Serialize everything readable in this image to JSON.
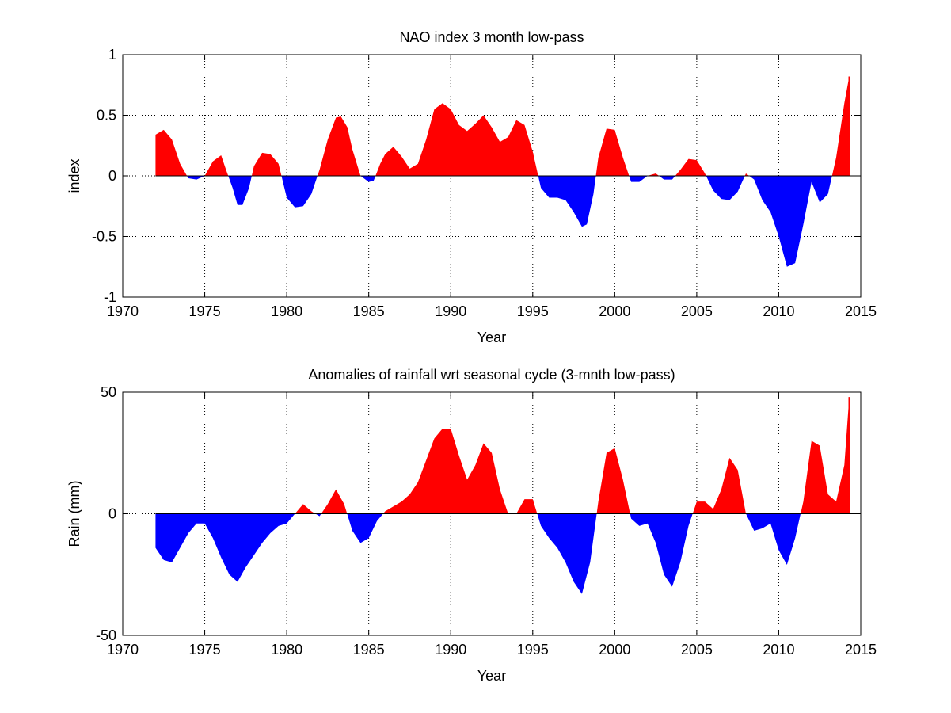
{
  "colors": {
    "positive": "#ff0000",
    "negative": "#0000ff",
    "axes": "#000000",
    "grid": "#000000"
  },
  "chart_data": [
    {
      "type": "area",
      "title": "NAO index 3 month low-pass",
      "xlabel": "Year",
      "ylabel": "index",
      "xlim": [
        1970,
        2015
      ],
      "ylim": [
        -1,
        1
      ],
      "xticks": [
        1970,
        1975,
        1980,
        1985,
        1990,
        1995,
        2000,
        2005,
        2010,
        2015
      ],
      "yticks": [
        -1,
        -0.5,
        0,
        0.5,
        1
      ],
      "xtick_labels": [
        "1970",
        "1975",
        "1980",
        "1985",
        "1990",
        "1995",
        "2000",
        "2005",
        "2010",
        "2015"
      ],
      "ytick_labels": [
        "-1",
        "-0.5",
        "0",
        "0.5",
        "1"
      ],
      "grid": true,
      "fill": "sign-colored",
      "series": [
        {
          "x": [
            1972.0,
            1972.5,
            1973.0,
            1973.5,
            1974.0,
            1974.5,
            1975.0,
            1975.5,
            1976.0,
            1976.3,
            1976.7,
            1977.0,
            1977.3,
            1977.7,
            1978.0,
            1978.5,
            1979.0,
            1979.5,
            1980.0,
            1980.5,
            1981.0,
            1981.5,
            1982.0,
            1982.5,
            1983.0,
            1983.3,
            1983.7,
            1984.0,
            1984.5,
            1985.0,
            1985.3,
            1985.7,
            1986.0,
            1986.5,
            1987.0,
            1987.5,
            1988.0,
            1988.5,
            1989.0,
            1989.5,
            1990.0,
            1990.5,
            1991.0,
            1991.5,
            1992.0,
            1992.5,
            1993.0,
            1993.5,
            1994.0,
            1994.5,
            1995.0,
            1995.5,
            1996.0,
            1996.5,
            1997.0,
            1997.5,
            1998.0,
            1998.3,
            1998.7,
            1999.0,
            1999.5,
            2000.0,
            2000.5,
            2001.0,
            2001.5,
            2002.0,
            2002.5,
            2003.0,
            2003.5,
            2004.0,
            2004.5,
            2005.0,
            2005.5,
            2006.0,
            2006.5,
            2007.0,
            2007.5,
            2008.0,
            2008.5,
            2009.0,
            2009.5,
            2010.0,
            2010.5,
            2011.0,
            2011.5,
            2012.0,
            2012.5,
            2013.0,
            2013.5,
            2014.0,
            2014.3
          ],
          "y": [
            0.34,
            0.38,
            0.3,
            0.1,
            -0.02,
            -0.03,
            0.0,
            0.12,
            0.17,
            0.05,
            -0.1,
            -0.24,
            -0.24,
            -0.1,
            0.08,
            0.19,
            0.18,
            0.1,
            -0.18,
            -0.26,
            -0.25,
            -0.15,
            0.05,
            0.3,
            0.48,
            0.49,
            0.4,
            0.22,
            0.0,
            -0.05,
            -0.04,
            0.1,
            0.18,
            0.24,
            0.16,
            0.06,
            0.1,
            0.3,
            0.55,
            0.6,
            0.55,
            0.42,
            0.37,
            0.43,
            0.5,
            0.4,
            0.28,
            0.32,
            0.46,
            0.42,
            0.2,
            -0.1,
            -0.18,
            -0.18,
            -0.2,
            -0.3,
            -0.42,
            -0.4,
            -0.15,
            0.15,
            0.39,
            0.38,
            0.15,
            -0.05,
            -0.05,
            0.0,
            0.02,
            -0.03,
            -0.03,
            0.05,
            0.14,
            0.13,
            0.02,
            -0.12,
            -0.19,
            -0.2,
            -0.13,
            0.02,
            -0.03,
            -0.2,
            -0.3,
            -0.5,
            -0.75,
            -0.72,
            -0.4,
            -0.05,
            -0.22,
            -0.15,
            0.15,
            0.6,
            0.82
          ]
        }
      ]
    },
    {
      "type": "area",
      "title": "Anomalies of rainfall wrt seasonal cycle (3-mnth low-pass)",
      "xlabel": "Year",
      "ylabel": "Rain (mm)",
      "xlim": [
        1970,
        2015
      ],
      "ylim": [
        -50,
        50
      ],
      "xticks": [
        1970,
        1975,
        1980,
        1985,
        1990,
        1995,
        2000,
        2005,
        2010,
        2015
      ],
      "yticks": [
        -50,
        0,
        50
      ],
      "xtick_labels": [
        "1970",
        "1975",
        "1980",
        "1985",
        "1990",
        "1995",
        "2000",
        "2005",
        "2010",
        "2015"
      ],
      "ytick_labels": [
        "-50",
        "0",
        "50"
      ],
      "grid": true,
      "fill": "sign-colored",
      "series": [
        {
          "x": [
            1972.0,
            1972.5,
            1973.0,
            1973.5,
            1974.0,
            1974.5,
            1975.0,
            1975.5,
            1976.0,
            1976.5,
            1977.0,
            1977.5,
            1978.0,
            1978.5,
            1979.0,
            1979.5,
            1980.0,
            1980.5,
            1981.0,
            1981.5,
            1982.0,
            1982.5,
            1983.0,
            1983.5,
            1984.0,
            1984.5,
            1985.0,
            1985.5,
            1986.0,
            1986.5,
            1987.0,
            1987.5,
            1988.0,
            1988.5,
            1989.0,
            1989.5,
            1990.0,
            1990.5,
            1991.0,
            1991.5,
            1992.0,
            1992.5,
            1993.0,
            1993.5,
            1994.0,
            1994.5,
            1995.0,
            1995.5,
            1996.0,
            1996.5,
            1997.0,
            1997.5,
            1998.0,
            1998.5,
            1999.0,
            1999.5,
            2000.0,
            2000.5,
            2001.0,
            2001.5,
            2002.0,
            2002.5,
            2003.0,
            2003.5,
            2004.0,
            2004.5,
            2005.0,
            2005.5,
            2006.0,
            2006.5,
            2007.0,
            2007.5,
            2008.0,
            2008.5,
            2009.0,
            2009.5,
            2010.0,
            2010.5,
            2011.0,
            2011.5,
            2012.0,
            2012.5,
            2013.0,
            2013.5,
            2014.0,
            2014.3
          ],
          "y": [
            -14,
            -19,
            -20,
            -14,
            -8,
            -4,
            -4,
            -10,
            -18,
            -25,
            -28,
            -22,
            -17,
            -12,
            -8,
            -5,
            -4,
            0,
            4,
            1,
            -1,
            4,
            10,
            4,
            -7,
            -12,
            -10,
            -3,
            1,
            3,
            5,
            8,
            13,
            22,
            31,
            35,
            35,
            24,
            14,
            20,
            29,
            25,
            10,
            0,
            0,
            6,
            6,
            -5,
            -10,
            -14,
            -20,
            -28,
            -33,
            -20,
            5,
            25,
            27,
            14,
            -2,
            -5,
            -4,
            -12,
            -25,
            -30,
            -20,
            -5,
            5,
            5,
            2,
            10,
            23,
            18,
            0,
            -7,
            -6,
            -4,
            -15,
            -21,
            -10,
            5,
            30,
            28,
            8,
            5,
            20,
            48
          ]
        }
      ]
    }
  ]
}
